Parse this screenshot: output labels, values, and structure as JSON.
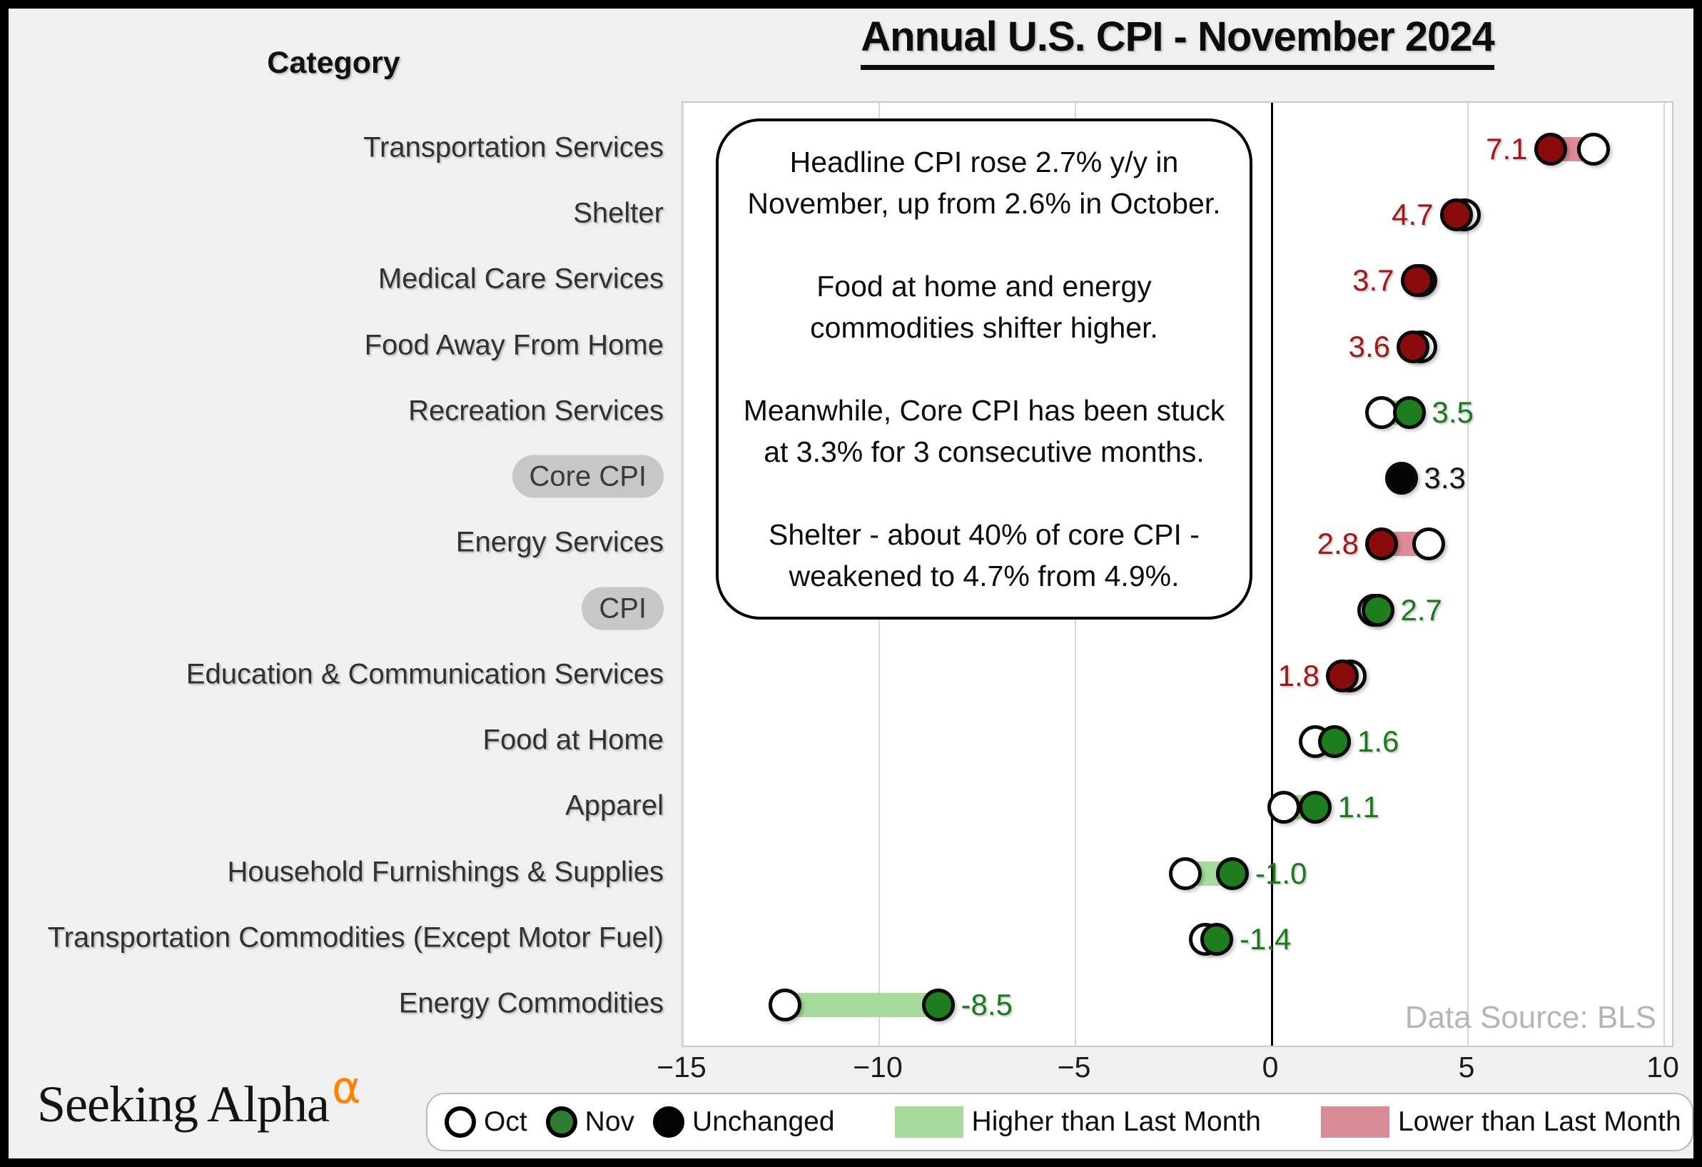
{
  "page": {
    "title": "Annual U.S. CPI - November 2024",
    "category_header": "Category",
    "data_source": "Data Source: BLS",
    "logo_text": "Seeking Alpha",
    "logo_alpha": "α"
  },
  "annotation": {
    "paragraphs": [
      "Headline CPI rose 2.7% y/y in November, up from 2.6% in October.",
      "Food at home and energy commodities shifter higher.",
      "Meanwhile, Core CPI has been stuck at 3.3% for 3 consecutive months.",
      "Shelter - about 40% of core CPI - weakened to 4.7% from 4.9%."
    ]
  },
  "x_axis": {
    "tick_labels": [
      "−15",
      "−10",
      "−5",
      "0",
      "5",
      "10"
    ],
    "tick_values": [
      -15,
      -10,
      -5,
      0,
      5,
      10
    ],
    "min": -15,
    "max": 10.27,
    "grid": true
  },
  "legend": {
    "items": [
      {
        "type": "circle",
        "fill": "#ffffff",
        "label": "Oct",
        "big_gap": false
      },
      {
        "type": "circle",
        "fill": "#2f7d33",
        "label": "Nov",
        "big_gap": false
      },
      {
        "type": "circle",
        "fill": "#050505",
        "label": "Unchanged",
        "big_gap": false
      },
      {
        "type": "swatch",
        "fill": "#a7db9b",
        "label": "Higher than Last Month",
        "big_gap": true
      },
      {
        "type": "swatch",
        "fill": "#d98c98",
        "label": "Lower than Last Month",
        "big_gap": true
      }
    ]
  },
  "chart_data": {
    "type": "dumbbell",
    "unit": "% year-over-year",
    "categories": [
      "Transportation Services",
      "Shelter",
      "Medical Care Services",
      "Food Away From Home",
      "Recreation Services",
      "Core CPI",
      "Energy Services",
      "CPI",
      "Education & Communication Services",
      "Food at Home",
      "Apparel",
      "Household Furnishings & Supplies",
      "Transportation Commodities (Except Motor Fuel)",
      "Energy Commodities"
    ],
    "series": [
      {
        "name": "Oct",
        "values": [
          8.2,
          4.9,
          3.8,
          3.8,
          2.8,
          3.3,
          4.0,
          2.6,
          2.0,
          1.1,
          0.3,
          -2.2,
          -1.7,
          -12.4
        ]
      },
      {
        "name": "Nov",
        "values": [
          7.1,
          4.7,
          3.7,
          3.6,
          3.5,
          3.3,
          2.8,
          2.7,
          1.8,
          1.6,
          1.1,
          -1.0,
          -1.4,
          -8.5
        ]
      }
    ],
    "rows": [
      {
        "category": "Transportation Services",
        "oct": 8.2,
        "nov": 7.1,
        "label": "7.1",
        "nov_color": "red",
        "change": "lower",
        "label_side": "left",
        "pill": false
      },
      {
        "category": "Shelter",
        "oct": 4.9,
        "nov": 4.7,
        "label": "4.7",
        "nov_color": "red",
        "change": "lower",
        "label_side": "left",
        "pill": false
      },
      {
        "category": "Medical Care Services",
        "oct": 3.8,
        "nov": 3.7,
        "label": "3.7",
        "nov_color": "red",
        "change": "lower",
        "label_side": "left",
        "pill": false
      },
      {
        "category": "Food Away From Home",
        "oct": 3.8,
        "nov": 3.6,
        "label": "3.6",
        "nov_color": "red",
        "change": "lower",
        "label_side": "left",
        "pill": false
      },
      {
        "category": "Recreation Services",
        "oct": 2.8,
        "nov": 3.5,
        "label": "3.5",
        "nov_color": "green",
        "change": "higher",
        "label_side": "right",
        "pill": false
      },
      {
        "category": "Core CPI",
        "oct": 3.3,
        "nov": 3.3,
        "label": "3.3",
        "nov_color": "black",
        "change": "unchanged",
        "label_side": "right",
        "pill": true
      },
      {
        "category": "Energy Services",
        "oct": 4.0,
        "nov": 2.8,
        "label": "2.8",
        "nov_color": "red",
        "change": "lower",
        "label_side": "left",
        "pill": false
      },
      {
        "category": "CPI",
        "oct": 2.6,
        "nov": 2.7,
        "label": "2.7",
        "nov_color": "green",
        "change": "higher",
        "label_side": "right",
        "pill": true
      },
      {
        "category": "Education & Communication Services",
        "oct": 2.0,
        "nov": 1.8,
        "label": "1.8",
        "nov_color": "red",
        "change": "lower",
        "label_side": "left",
        "pill": false
      },
      {
        "category": "Food at Home",
        "oct": 1.1,
        "nov": 1.6,
        "label": "1.6",
        "nov_color": "green",
        "change": "higher",
        "label_side": "right",
        "pill": false
      },
      {
        "category": "Apparel",
        "oct": 0.3,
        "nov": 1.1,
        "label": "1.1",
        "nov_color": "green",
        "change": "higher",
        "label_side": "right",
        "pill": false
      },
      {
        "category": "Household Furnishings & Supplies",
        "oct": -2.2,
        "nov": -1.0,
        "label": "-1.0",
        "nov_color": "green",
        "change": "higher",
        "label_side": "right",
        "pill": false
      },
      {
        "category": "Transportation Commodities (Except Motor Fuel)",
        "oct": -1.7,
        "nov": -1.4,
        "label": "-1.4",
        "nov_color": "green",
        "change": "higher",
        "label_side": "right",
        "pill": false
      },
      {
        "category": "Energy Commodities",
        "oct": -12.4,
        "nov": -8.5,
        "label": "-8.5",
        "nov_color": "green",
        "change": "higher",
        "label_side": "right",
        "pill": false
      }
    ]
  },
  "colors": {
    "page_bg": "#f0f0f0",
    "plot_bg": "#ffffff",
    "oct_dot": "#ffffff",
    "nov_red": "#8a0b0b",
    "nov_green": "#1e7e1e",
    "unchanged_dot": "#050505",
    "label_red": "#a01818",
    "label_green": "#1a7a1a",
    "label_black": "#141414",
    "higher_band": "#a7db9b",
    "lower_band": "#dc8b97",
    "gridline": "#d9d9d9",
    "zero_line": "#000000",
    "alpha_orange": "#ff8200"
  }
}
